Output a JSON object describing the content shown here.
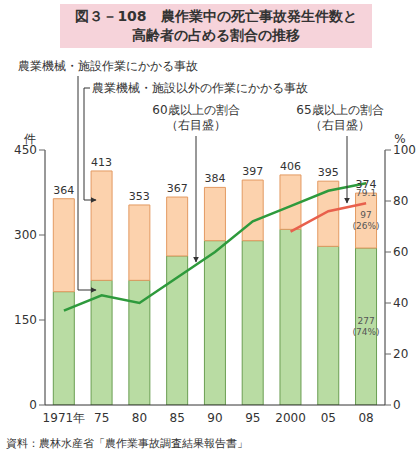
{
  "chart_data": {
    "type": "bar",
    "title": "図３－108　農作業中の死亡事故発生件数と\n高齢者の占める割合の推移",
    "categories": [
      "1971年",
      "75",
      "80",
      "85",
      "90",
      "95",
      "2000",
      "05",
      "08"
    ],
    "stacked": true,
    "series": [
      {
        "name": "農業機械・施設作業にかかる事故",
        "type": "bar",
        "color": "#b9dca3",
        "values": [
          200,
          220,
          220,
          263,
          290,
          290,
          310,
          280,
          277
        ],
        "value_labels": [
          null,
          null,
          null,
          null,
          null,
          null,
          null,
          null,
          "277 (74%)"
        ]
      },
      {
        "name": "農業機械・施設以外の作業にかかる事故",
        "type": "bar",
        "color": "#fcd2ad",
        "values": [
          164,
          193,
          133,
          104,
          94,
          107,
          96,
          115,
          97
        ],
        "value_labels": [
          null,
          null,
          null,
          null,
          null,
          null,
          null,
          null,
          "97 (26%)"
        ]
      },
      {
        "name": "60歳以上の割合\n（右目盛）",
        "type": "line",
        "axis": "y2",
        "color": "#2e9a3c",
        "values": [
          37,
          43,
          40,
          50,
          60,
          72,
          78,
          84,
          87
        ]
      },
      {
        "name": "65歳以上の割合\n（右目盛）",
        "type": "line",
        "axis": "y2",
        "color": "#e8604c",
        "values": [
          null,
          null,
          null,
          null,
          null,
          null,
          68,
          76,
          79.1
        ],
        "value_labels": [
          null,
          null,
          null,
          null,
          null,
          null,
          null,
          null,
          "79.1"
        ]
      }
    ],
    "totals": [
      364,
      413,
      353,
      367,
      384,
      397,
      406,
      395,
      374
    ],
    "ylim": [
      0,
      450
    ],
    "yticks": [
      0,
      150,
      300,
      450
    ],
    "y2lim": [
      0,
      100
    ],
    "y2ticks": [
      0,
      20,
      40,
      60,
      80,
      100
    ],
    "y_label": "件",
    "y2_label": "%",
    "source": "資料：農林水産省「農作業事故調査結果報告書」"
  }
}
